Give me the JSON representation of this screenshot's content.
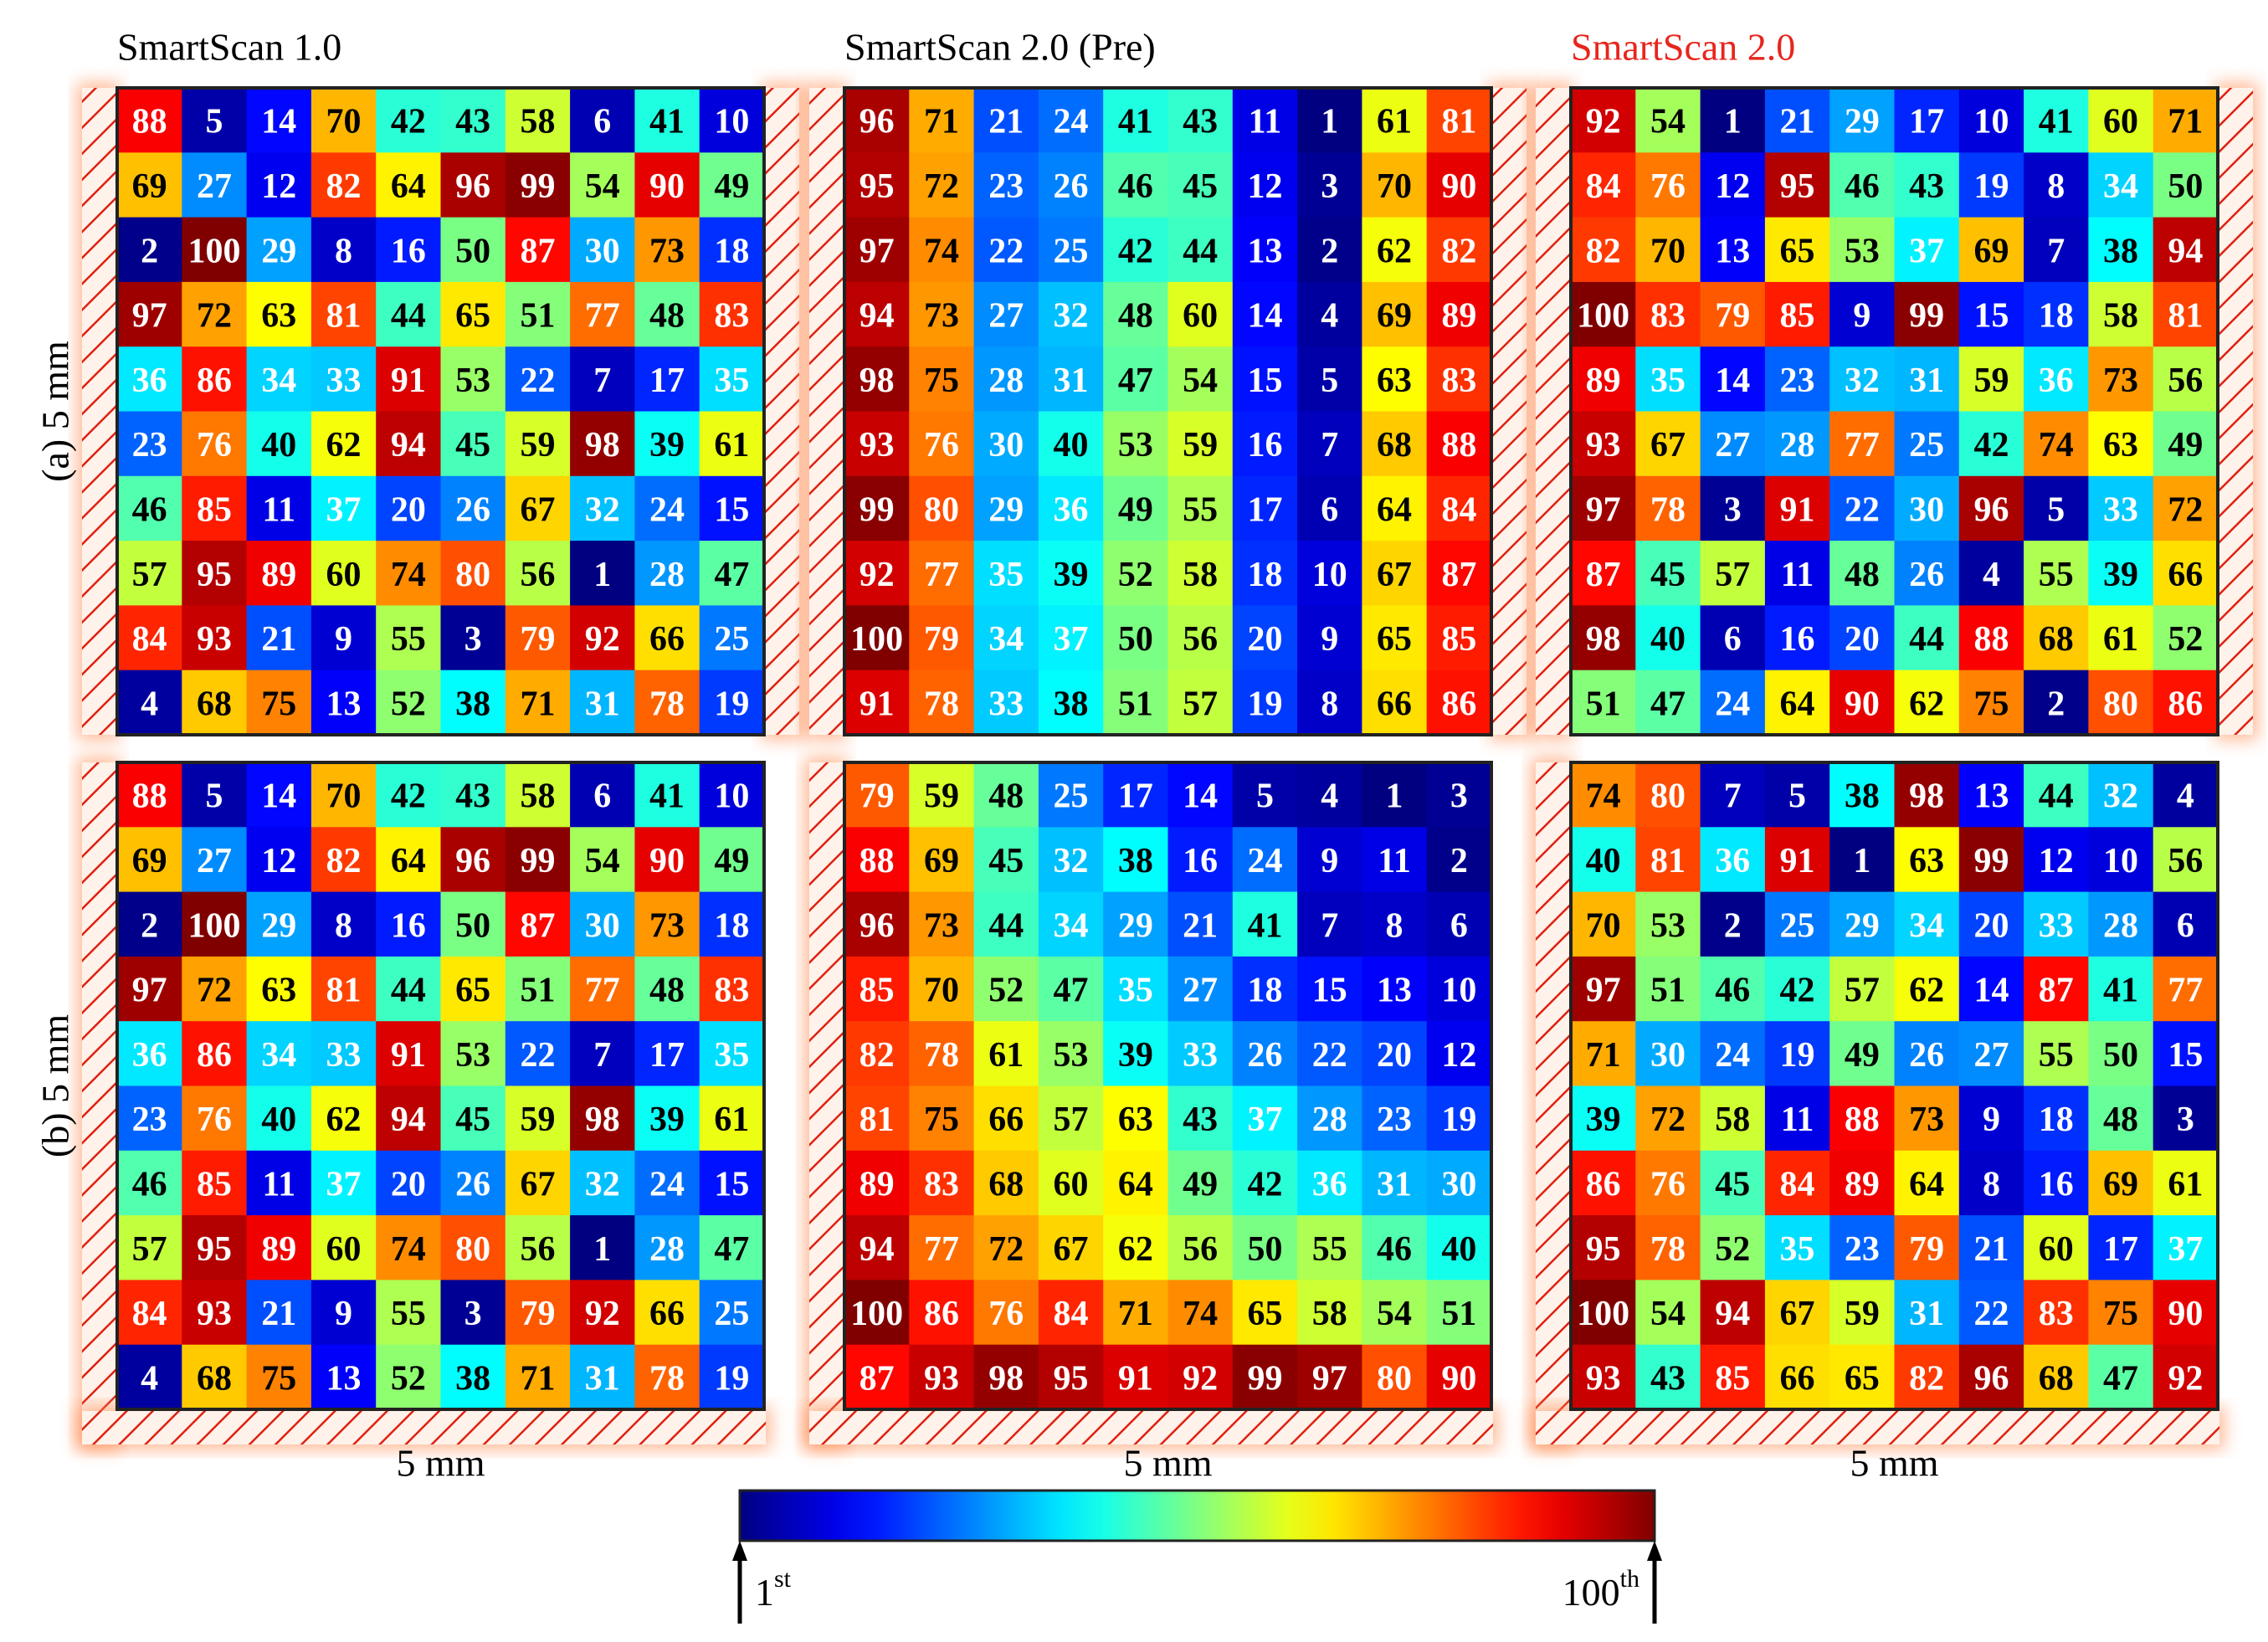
{
  "chart_data": [
    {
      "type": "heatmap",
      "title": "SmartScan 1.0",
      "title_color": "#000000",
      "ylabel": "(a) 5 mm",
      "colormap": "jet",
      "vlim": [
        1,
        100
      ],
      "values": [
        [
          88,
          5,
          14,
          70,
          42,
          43,
          58,
          6,
          41,
          10
        ],
        [
          69,
          27,
          12,
          82,
          64,
          96,
          99,
          54,
          90,
          49
        ],
        [
          2,
          100,
          29,
          8,
          16,
          50,
          87,
          30,
          73,
          18
        ],
        [
          97,
          72,
          63,
          81,
          44,
          65,
          51,
          77,
          48,
          83
        ],
        [
          36,
          86,
          34,
          33,
          91,
          53,
          22,
          7,
          17,
          35
        ],
        [
          23,
          76,
          40,
          62,
          94,
          45,
          59,
          98,
          39,
          61
        ],
        [
          46,
          85,
          11,
          37,
          20,
          26,
          67,
          32,
          24,
          15
        ],
        [
          57,
          95,
          89,
          60,
          74,
          80,
          56,
          1,
          28,
          47
        ],
        [
          84,
          93,
          21,
          9,
          55,
          3,
          79,
          92,
          66,
          25
        ],
        [
          4,
          68,
          75,
          13,
          52,
          38,
          71,
          31,
          78,
          19
        ]
      ]
    },
    {
      "type": "heatmap",
      "title": "SmartScan 2.0 (Pre)",
      "title_color": "#000000",
      "colormap": "jet",
      "vlim": [
        1,
        100
      ],
      "values": [
        [
          96,
          71,
          21,
          24,
          41,
          43,
          11,
          1,
          61,
          81
        ],
        [
          95,
          72,
          23,
          26,
          46,
          45,
          12,
          3,
          70,
          90
        ],
        [
          97,
          74,
          22,
          25,
          42,
          44,
          13,
          2,
          62,
          82
        ],
        [
          94,
          73,
          27,
          32,
          48,
          60,
          14,
          4,
          69,
          89
        ],
        [
          98,
          75,
          28,
          31,
          47,
          54,
          15,
          5,
          63,
          83
        ],
        [
          93,
          76,
          30,
          40,
          53,
          59,
          16,
          7,
          68,
          88
        ],
        [
          99,
          80,
          29,
          36,
          49,
          55,
          17,
          6,
          64,
          84
        ],
        [
          92,
          77,
          35,
          39,
          52,
          58,
          18,
          10,
          67,
          87
        ],
        [
          100,
          79,
          34,
          37,
          50,
          56,
          20,
          9,
          65,
          85
        ],
        [
          91,
          78,
          33,
          38,
          51,
          57,
          19,
          8,
          66,
          86
        ]
      ]
    },
    {
      "type": "heatmap",
      "title": "SmartScan 2.0",
      "title_color": "#e8251c",
      "colormap": "jet",
      "vlim": [
        1,
        100
      ],
      "values": [
        [
          92,
          54,
          1,
          21,
          29,
          17,
          10,
          41,
          60,
          71
        ],
        [
          84,
          76,
          12,
          95,
          46,
          43,
          19,
          8,
          34,
          50
        ],
        [
          82,
          70,
          13,
          65,
          53,
          37,
          69,
          7,
          38,
          94
        ],
        [
          100,
          83,
          79,
          85,
          9,
          99,
          15,
          18,
          58,
          81
        ],
        [
          89,
          35,
          14,
          23,
          32,
          31,
          59,
          36,
          73,
          56
        ],
        [
          93,
          67,
          27,
          28,
          77,
          25,
          42,
          74,
          63,
          49
        ],
        [
          97,
          78,
          3,
          91,
          22,
          30,
          96,
          5,
          33,
          72
        ],
        [
          87,
          45,
          57,
          11,
          48,
          26,
          4,
          55,
          39,
          66
        ],
        [
          98,
          40,
          6,
          16,
          20,
          44,
          88,
          68,
          61,
          52
        ],
        [
          51,
          47,
          24,
          64,
          90,
          62,
          75,
          2,
          80,
          86
        ]
      ]
    },
    {
      "type": "heatmap",
      "ylabel": "(b) 5 mm",
      "xlabel": "5 mm",
      "colormap": "jet",
      "vlim": [
        1,
        100
      ],
      "values": [
        [
          88,
          5,
          14,
          70,
          42,
          43,
          58,
          6,
          41,
          10
        ],
        [
          69,
          27,
          12,
          82,
          64,
          96,
          99,
          54,
          90,
          49
        ],
        [
          2,
          100,
          29,
          8,
          16,
          50,
          87,
          30,
          73,
          18
        ],
        [
          97,
          72,
          63,
          81,
          44,
          65,
          51,
          77,
          48,
          83
        ],
        [
          36,
          86,
          34,
          33,
          91,
          53,
          22,
          7,
          17,
          35
        ],
        [
          23,
          76,
          40,
          62,
          94,
          45,
          59,
          98,
          39,
          61
        ],
        [
          46,
          85,
          11,
          37,
          20,
          26,
          67,
          32,
          24,
          15
        ],
        [
          57,
          95,
          89,
          60,
          74,
          80,
          56,
          1,
          28,
          47
        ],
        [
          84,
          93,
          21,
          9,
          55,
          3,
          79,
          92,
          66,
          25
        ],
        [
          4,
          68,
          75,
          13,
          52,
          38,
          71,
          31,
          78,
          19
        ]
      ]
    },
    {
      "type": "heatmap",
      "xlabel": "5 mm",
      "colormap": "jet",
      "vlim": [
        1,
        100
      ],
      "values": [
        [
          79,
          59,
          48,
          25,
          17,
          14,
          5,
          4,
          1,
          3
        ],
        [
          88,
          69,
          45,
          32,
          38,
          16,
          24,
          9,
          11,
          2
        ],
        [
          96,
          73,
          44,
          34,
          29,
          21,
          41,
          7,
          8,
          6
        ],
        [
          85,
          70,
          52,
          47,
          35,
          27,
          18,
          15,
          13,
          10
        ],
        [
          82,
          78,
          61,
          53,
          39,
          33,
          26,
          22,
          20,
          12
        ],
        [
          81,
          75,
          66,
          57,
          63,
          43,
          37,
          28,
          23,
          19
        ],
        [
          89,
          83,
          68,
          60,
          64,
          49,
          42,
          36,
          31,
          30
        ],
        [
          94,
          77,
          72,
          67,
          62,
          56,
          50,
          55,
          46,
          40
        ],
        [
          100,
          86,
          76,
          84,
          71,
          74,
          65,
          58,
          54,
          51
        ],
        [
          87,
          93,
          98,
          95,
          91,
          92,
          99,
          97,
          80,
          90
        ]
      ]
    },
    {
      "type": "heatmap",
      "xlabel": "5 mm",
      "colormap": "jet",
      "vlim": [
        1,
        100
      ],
      "values": [
        [
          74,
          80,
          7,
          5,
          38,
          98,
          13,
          44,
          32,
          4
        ],
        [
          40,
          81,
          36,
          91,
          1,
          63,
          99,
          12,
          10,
          56
        ],
        [
          70,
          53,
          2,
          25,
          29,
          34,
          20,
          33,
          28,
          6
        ],
        [
          97,
          51,
          46,
          42,
          57,
          62,
          14,
          87,
          41,
          77
        ],
        [
          71,
          30,
          24,
          19,
          49,
          26,
          27,
          55,
          50,
          15
        ],
        [
          39,
          72,
          58,
          11,
          88,
          73,
          9,
          18,
          48,
          3
        ],
        [
          86,
          76,
          45,
          84,
          89,
          64,
          8,
          16,
          69,
          61
        ],
        [
          95,
          78,
          52,
          35,
          23,
          79,
          21,
          60,
          17,
          37
        ],
        [
          100,
          54,
          94,
          67,
          59,
          31,
          22,
          83,
          75,
          90
        ],
        [
          93,
          43,
          85,
          66,
          65,
          82,
          96,
          68,
          47,
          92
        ]
      ]
    }
  ],
  "colorbar": {
    "colormap": "jet",
    "range": [
      1,
      100
    ],
    "min_label": {
      "text": "1",
      "sup": "st"
    },
    "max_label": {
      "text": "100",
      "sup": "th"
    }
  }
}
